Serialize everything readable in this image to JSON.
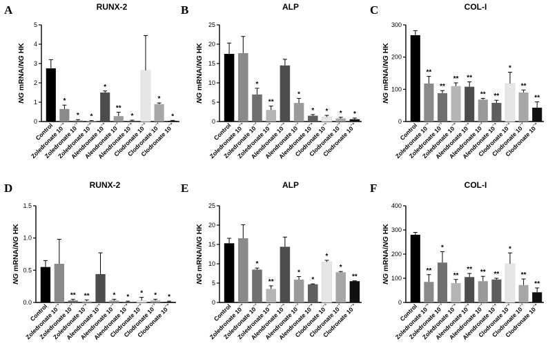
{
  "ylabel": "NG mRNA/NG HK",
  "chart_data": [
    {
      "panel": "A",
      "title": "RUNX-2",
      "type": "bar",
      "categories": [
        "Control",
        "Zoledronate 10⁻⁵",
        "Zoledronate 10⁻⁷",
        "Zoledronate 10⁻⁹",
        "Alendronate 10⁻⁵",
        "Alendronate 10⁻⁷",
        "Alendronate 10⁻⁹",
        "Clodronate 10⁻⁵",
        "Clodronate 10⁻⁷",
        "Clodronate 10⁻⁹"
      ],
      "values": [
        2.75,
        0.65,
        0.05,
        0.03,
        1.5,
        0.28,
        0.04,
        2.65,
        0.9,
        0.04
      ],
      "errors": [
        0.45,
        0.2,
        0.05,
        0.02,
        0.08,
        0.2,
        0.03,
        1.8,
        0.06,
        0.02
      ],
      "significance": [
        "",
        "*",
        "*",
        "*",
        "*",
        "**",
        "*",
        "",
        "*",
        "*"
      ],
      "ylim": [
        0,
        5
      ],
      "yticks": [
        0,
        1,
        2,
        3,
        4,
        5
      ]
    },
    {
      "panel": "B",
      "title": "ALP",
      "type": "bar",
      "categories": [
        "Control",
        "Zoledronate 10⁻⁵",
        "Zoledronate 10⁻⁷",
        "Zoledronate 10⁻⁹",
        "Alendronate 10⁻⁵",
        "Alendronate 10⁻⁷",
        "Alendronate 10⁻⁹",
        "Clodronate 10⁻⁵",
        "Clodronate 10⁻⁷",
        "Clodronate 10⁻⁹"
      ],
      "values": [
        17.5,
        17.7,
        7.0,
        3.0,
        14.5,
        4.8,
        1.5,
        1.2,
        0.8,
        0.6
      ],
      "errors": [
        2.8,
        4.3,
        1.6,
        1.0,
        1.6,
        1.2,
        0.3,
        0.4,
        0.3,
        0.3
      ],
      "significance": [
        "",
        "",
        "*",
        "**",
        "",
        "*",
        "*",
        "*",
        "*",
        "*"
      ],
      "ylim": [
        0,
        25
      ],
      "yticks": [
        0,
        5,
        10,
        15,
        20,
        25
      ]
    },
    {
      "panel": "C",
      "title": "COL-I",
      "type": "bar",
      "categories": [
        "Control",
        "Zoledronate 10⁻⁵",
        "Zoledronate 10⁻⁷",
        "Zoledronate 10⁻⁹",
        "Alendronate 10⁻⁵",
        "Alendronate 10⁻⁷",
        "Alendronate 10⁻⁹",
        "Clodronate 10⁻⁵",
        "Clodronate 10⁻⁷",
        "Clodronate 10⁻⁹"
      ],
      "values": [
        268,
        118,
        88,
        110,
        108,
        68,
        58,
        118,
        90,
        43
      ],
      "errors": [
        14,
        22,
        8,
        10,
        15,
        4,
        8,
        35,
        8,
        18
      ],
      "significance": [
        "",
        "**",
        "**",
        "**",
        "**",
        "**",
        "**",
        "*",
        "**",
        "**"
      ],
      "ylim": [
        0,
        300
      ],
      "yticks": [
        0,
        100,
        200,
        300
      ]
    },
    {
      "panel": "D",
      "title": "RUNX-2",
      "type": "bar",
      "categories": [
        "Control",
        "Zoledronate 10⁻⁵",
        "Zoledronate 10⁻⁷",
        "Zoledronate 10⁻⁹",
        "Alendronate 10⁻⁵",
        "Alendronate 10⁻⁷",
        "Alendronate 10⁻⁹",
        "Clodronate 10⁻⁵",
        "Clodronate 10⁻⁷",
        "Clodronate 10⁻⁹"
      ],
      "values": [
        0.55,
        0.6,
        0.03,
        0.02,
        0.44,
        0.03,
        0.01,
        0.03,
        0.03,
        0.01
      ],
      "errors": [
        0.1,
        0.38,
        0.02,
        0.02,
        0.33,
        0.02,
        0.01,
        0.05,
        0.02,
        0.01
      ],
      "significance": [
        "",
        "",
        "**",
        "**",
        "",
        "*",
        "*",
        "*",
        "*",
        "*"
      ],
      "ylim": [
        0,
        1.5
      ],
      "yticks": [
        0.0,
        0.5,
        1.0,
        1.5
      ]
    },
    {
      "panel": "E",
      "title": "ALP",
      "type": "bar",
      "categories": [
        "Control",
        "Zoledronate 10⁻⁵",
        "Zoledronate 10⁻⁷",
        "Zoledronate 10⁻⁹",
        "Alendronate 10⁻⁵",
        "Alendronate 10⁻⁷",
        "Alendronate 10⁻⁹",
        "Clodronate 10⁻⁵",
        "Clodronate 10⁻⁷",
        "Clodronate 10⁻⁹"
      ],
      "values": [
        15.3,
        16.6,
        8.5,
        3.5,
        14.4,
        5.9,
        4.7,
        10.5,
        7.8,
        5.5
      ],
      "errors": [
        1.3,
        3.5,
        0.4,
        0.8,
        2.5,
        0.8,
        0.1,
        0.4,
        0.2,
        0.1
      ],
      "significance": [
        "",
        "",
        "*",
        "**",
        "",
        "*",
        "*",
        "*",
        "*",
        "**"
      ],
      "ylim": [
        0,
        25
      ],
      "yticks": [
        0,
        5,
        10,
        15,
        20,
        25
      ]
    },
    {
      "panel": "F",
      "title": "COL-I",
      "type": "bar",
      "categories": [
        "Control",
        "Zoledronate 10⁻⁵",
        "Zoledronate 10⁻⁷",
        "Zoledronate 10⁻⁹",
        "Alendronate 10⁻⁵",
        "Alendronate 10⁻⁷",
        "Alendronate 10⁻⁹",
        "Clodronate 10⁻⁵",
        "Clodronate 10⁻⁷",
        "Clodronate 10⁻⁹"
      ],
      "values": [
        280,
        85,
        165,
        80,
        105,
        88,
        95,
        160,
        72,
        42
      ],
      "errors": [
        10,
        30,
        45,
        15,
        15,
        20,
        5,
        45,
        25,
        18
      ],
      "significance": [
        "",
        "**",
        "*",
        "**",
        "**",
        "**",
        "**",
        "*",
        "**",
        "**"
      ],
      "ylim": [
        0,
        400
      ],
      "yticks": [
        0,
        100,
        200,
        300,
        400
      ]
    }
  ],
  "bar_colors": [
    "#000000",
    "#8a8a8a",
    "#707070",
    "#b5b5b5",
    "#4d4d4d",
    "#9a9a9a",
    "#5e5e5e",
    "#e6e6e6",
    "#a6a6a6",
    "#111111"
  ]
}
